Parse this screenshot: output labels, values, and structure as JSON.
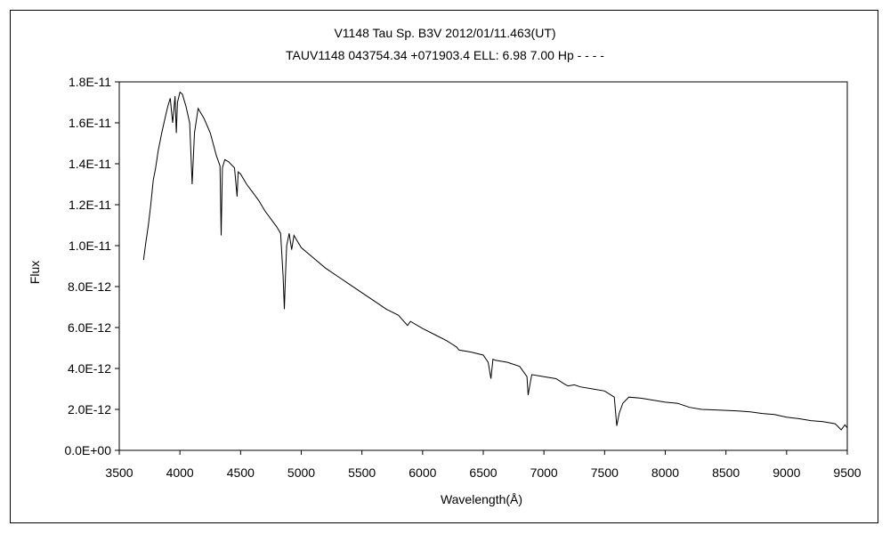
{
  "chart_data": {
    "type": "line",
    "title": "V1148 Tau    Sp. B3V    2012/01/11.463(UT)",
    "subtitle": "TAUV1148 043754.34 +071903.4 ELL: 6.98 7.00 Hp - - - -",
    "xlabel": "Wavelength(Å)",
    "ylabel": "Flux",
    "xlim": [
      3500,
      9500
    ],
    "ylim": [
      0,
      1.8e-11
    ],
    "x_ticks": [
      3500,
      4000,
      4500,
      5000,
      5500,
      6000,
      6500,
      7000,
      7500,
      8000,
      8500,
      9000,
      9500
    ],
    "x_tick_labels": [
      "3500",
      "4000",
      "4500",
      "5000",
      "5500",
      "6000",
      "6500",
      "7000",
      "7500",
      "8000",
      "8500",
      "9000",
      "9500"
    ],
    "y_ticks": [
      0,
      2e-12,
      4e-12,
      6e-12,
      8e-12,
      1e-11,
      1.2e-11,
      1.4e-11,
      1.6e-11,
      1.8e-11
    ],
    "y_tick_labels": [
      "0.0E+00",
      "2.0E-12",
      "4.0E-12",
      "6.0E-12",
      "8.0E-12",
      "1.0E-11",
      "1.2E-11",
      "1.4E-11",
      "1.6E-11",
      "1.8E-11"
    ],
    "grid": false,
    "legend": "none",
    "line_color": "#000000",
    "series": [
      {
        "x": [
          3700,
          3720,
          3740,
          3760,
          3780,
          3800,
          3820,
          3850,
          3880,
          3900,
          3920,
          3940,
          3960,
          3970,
          3980,
          4000,
          4020,
          4050,
          4080,
          4101,
          4120,
          4150,
          4180,
          4200,
          4250,
          4300,
          4330,
          4340,
          4350,
          4370,
          4400,
          4450,
          4471,
          4480,
          4500,
          4550,
          4600,
          4650,
          4700,
          4750,
          4800,
          4830,
          4850,
          4861,
          4870,
          4880,
          4900,
          4921,
          4940,
          4960,
          5000,
          5100,
          5200,
          5300,
          5400,
          5500,
          5600,
          5700,
          5800,
          5876,
          5900,
          6000,
          6100,
          6200,
          6280,
          6300,
          6400,
          6500,
          6540,
          6563,
          6580,
          6600,
          6700,
          6800,
          6860,
          6870,
          6890,
          6900,
          7000,
          7100,
          7180,
          7200,
          7250,
          7300,
          7400,
          7500,
          7580,
          7600,
          7620,
          7650,
          7700,
          7800,
          7900,
          8000,
          8100,
          8200,
          8300,
          8400,
          8500,
          8600,
          8700,
          8800,
          8900,
          9000,
          9100,
          9200,
          9300,
          9400,
          9450,
          9480,
          9500
        ],
        "y": [
          9.3e-12,
          1.02e-11,
          1.1e-11,
          1.2e-11,
          1.32e-11,
          1.38e-11,
          1.46e-11,
          1.55e-11,
          1.63e-11,
          1.68e-11,
          1.72e-11,
          1.6e-11,
          1.73e-11,
          1.55e-11,
          1.7e-11,
          1.75e-11,
          1.74e-11,
          1.68e-11,
          1.6e-11,
          1.3e-11,
          1.55e-11,
          1.67e-11,
          1.64e-11,
          1.62e-11,
          1.55e-11,
          1.44e-11,
          1.39e-11,
          1.05e-11,
          1.38e-11,
          1.42e-11,
          1.41e-11,
          1.38e-11,
          1.24e-11,
          1.36e-11,
          1.35e-11,
          1.3e-11,
          1.26e-11,
          1.22e-11,
          1.17e-11,
          1.13e-11,
          1.09e-11,
          1.06e-11,
          8.5e-12,
          6.9e-12,
          8.6e-12,
          1e-11,
          1.06e-11,
          9.8e-12,
          1.05e-11,
          1.03e-11,
          9.9e-12,
          9.4e-12,
          8.9e-12,
          8.5e-12,
          8.1e-12,
          7.7e-12,
          7.3e-12,
          6.9e-12,
          6.6e-12,
          6.1e-12,
          6.3e-12,
          5.95e-12,
          5.65e-12,
          5.35e-12,
          5.05e-12,
          4.9e-12,
          4.8e-12,
          4.65e-12,
          4.3e-12,
          3.5e-12,
          4.45e-12,
          4.4e-12,
          4.3e-12,
          4.1e-12,
          3.6e-12,
          2.7e-12,
          3.4e-12,
          3.7e-12,
          3.6e-12,
          3.5e-12,
          3.2e-12,
          3.15e-12,
          3.2e-12,
          3.1e-12,
          3e-12,
          2.9e-12,
          2.6e-12,
          1.2e-12,
          1.8e-12,
          2.3e-12,
          2.6e-12,
          2.55e-12,
          2.45e-12,
          2.35e-12,
          2.3e-12,
          2.1e-12,
          2e-12,
          1.98e-12,
          1.95e-12,
          1.92e-12,
          1.88e-12,
          1.8e-12,
          1.75e-12,
          1.62e-12,
          1.55e-12,
          1.45e-12,
          1.4e-12,
          1.3e-12,
          1e-12,
          1.25e-12,
          1.1e-12
        ]
      }
    ]
  }
}
